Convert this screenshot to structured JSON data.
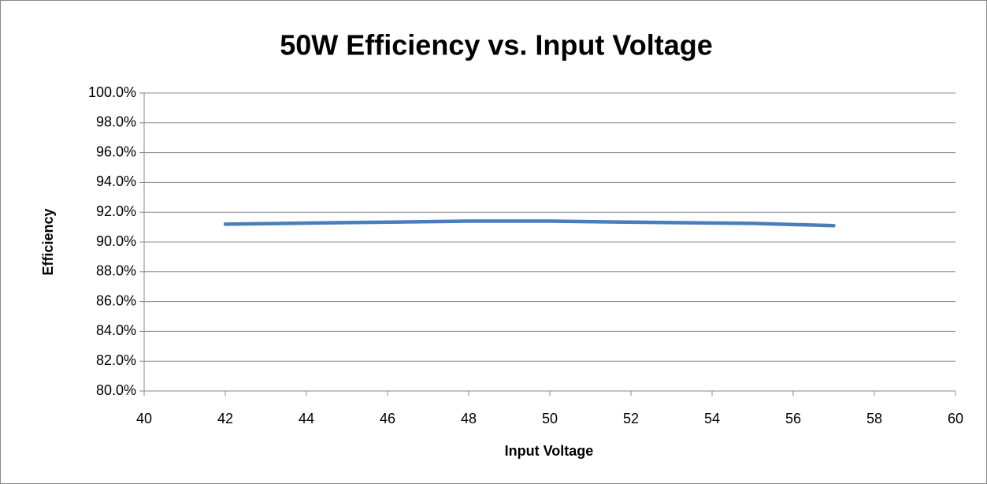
{
  "chart_data": {
    "type": "line",
    "title": "50W Efficiency vs. Input Voltage",
    "x_label": "Input Voltage",
    "y_label": "Efficiency",
    "x": [
      42,
      45,
      48,
      50,
      53,
      55,
      57
    ],
    "series": [
      {
        "name": "Efficiency",
        "color": "#4a7ebb",
        "values": [
          91.2,
          91.3,
          91.4,
          91.4,
          91.3,
          91.25,
          91.1
        ]
      }
    ],
    "xlim": [
      40,
      60
    ],
    "xticks": [
      40,
      42,
      44,
      46,
      48,
      50,
      52,
      54,
      56,
      58,
      60
    ],
    "ylim": [
      80,
      100
    ],
    "yticks": [
      {
        "value": 80,
        "label": "80.0%"
      },
      {
        "value": 82,
        "label": "82.0%"
      },
      {
        "value": 84,
        "label": "84.0%"
      },
      {
        "value": 86,
        "label": "86.0%"
      },
      {
        "value": 88,
        "label": "88.0%"
      },
      {
        "value": 90,
        "label": "90.0%"
      },
      {
        "value": 92,
        "label": "92.0%"
      },
      {
        "value": 94,
        "label": "94.0%"
      },
      {
        "value": 96,
        "label": "96.0%"
      },
      {
        "value": 98,
        "label": "98.0%"
      },
      {
        "value": 100,
        "label": "100.0%"
      }
    ],
    "grid": true
  }
}
